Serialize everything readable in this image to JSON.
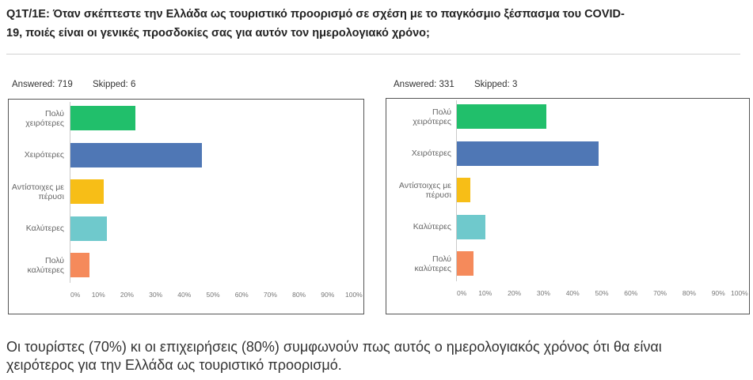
{
  "question": {
    "lines": [
      "Q1T/1E: Όταν σκέπτεστε την Ελλάδα ως τουριστικό προορισμό σε σχέση με το παγκόσμιο ξέσπασμα του COVID-",
      "19, ποιές είναι οι γενικές προσδοκίες σας για αυτόν τον ημερολογιακό χρόνο;"
    ]
  },
  "panels": [
    {
      "answered": "Answered: 719",
      "skipped": "Skipped: 6"
    },
    {
      "answered": "Answered: 331",
      "skipped": "Skipped: 3"
    }
  ],
  "conclusion": {
    "lines": [
      "Οι τουρίστες (70%) κι οι επιχειρήσεις (80%) συμφωνούν πως αυτός ο ημερολογιακός χρόνος ότι θα είναι",
      "χειρότερος για την Ελλάδα ως τουριστικό προορισμό."
    ]
  },
  "chart_data": [
    {
      "type": "bar",
      "orientation": "horizontal",
      "categories": [
        "Πολύ χειρότερες",
        "Χειρότερες",
        "Αντίστοιχες με πέρυσι",
        "Καλύτερες",
        "Πολύ καλύτερες"
      ],
      "values": [
        23,
        46,
        12,
        13,
        7
      ],
      "unit": "%",
      "colors": [
        "#21bf6b",
        "#4f77b5",
        "#f7be17",
        "#6fc9cc",
        "#f58a5b"
      ],
      "x_ticks": [
        "0%",
        "10%",
        "20%",
        "30%",
        "40%",
        "50%",
        "60%",
        "70%",
        "80%",
        "90%",
        "100%"
      ],
      "xlim": [
        0,
        100
      ],
      "grid": false
    },
    {
      "type": "bar",
      "orientation": "horizontal",
      "categories": [
        "Πολύ χειρότερες",
        "Χειρότερες",
        "Αντίστοιχες με πέρυσι",
        "Καλύτερες",
        "Πολύ καλύτερες"
      ],
      "values": [
        31,
        49,
        5,
        10,
        6
      ],
      "unit": "%",
      "colors": [
        "#21bf6b",
        "#4f77b5",
        "#f7be17",
        "#6fc9cc",
        "#f58a5b"
      ],
      "x_ticks": [
        "0%",
        "10%",
        "20%",
        "30%",
        "40%",
        "50%",
        "60%",
        "70%",
        "80%",
        "90%",
        "100%"
      ],
      "xlim": [
        0,
        100
      ],
      "grid": false
    }
  ]
}
